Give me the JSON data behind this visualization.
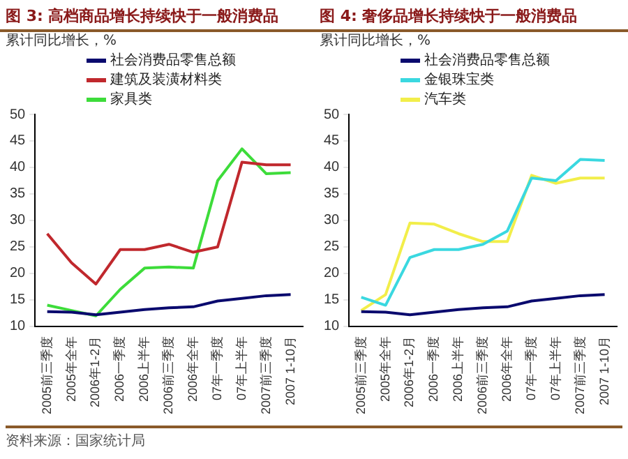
{
  "chart_data": [
    {
      "type": "line",
      "title": "图 3: 高档商品增长持续快于一般消费品",
      "ylabel": "累计同比增长，%",
      "categories": [
        "2005前三季度",
        "2005年全年",
        "2006年1-2月",
        "2006一季度",
        "2006上半年",
        "2006前三季度",
        "2006年全年",
        "07年一季度",
        "07年上半年",
        "2007前三季度",
        "2007 1-10月"
      ],
      "series": [
        {
          "name": "社会消费品零售总额",
          "color": "#0a0a6e",
          "values": [
            12.8,
            12.7,
            12.2,
            12.7,
            13.2,
            13.5,
            13.7,
            14.8,
            15.3,
            15.8,
            16
          ]
        },
        {
          "name": "建筑及装潢材料类",
          "color": "#c0282d",
          "values": [
            27.5,
            22,
            18,
            24.5,
            24.5,
            25.5,
            24,
            25,
            41,
            40.5,
            40.5
          ]
        },
        {
          "name": "家具类",
          "color": "#3ddc3a",
          "values": [
            14,
            13,
            12,
            17,
            21,
            21.2,
            21,
            37.5,
            43.5,
            38.8,
            39
          ]
        }
      ],
      "ylim": [
        10,
        50
      ],
      "yticks": [
        10,
        15,
        20,
        25,
        30,
        35,
        40,
        45,
        50
      ],
      "legend": "top",
      "marker": "none",
      "annotations": [
        "资料来源：国家统计局"
      ]
    },
    {
      "type": "line",
      "title": "图 4: 奢侈品增长持续快于一般消费品",
      "ylabel": "累计同比增长，%",
      "categories": [
        "2005前三季度",
        "2005年全年",
        "2006年1-2月",
        "2006一季度",
        "2006上半年",
        "2006前三季度",
        "2006年全年",
        "07年一季度",
        "07年上半年",
        "2007前三季度",
        "2007 1-10月"
      ],
      "series": [
        {
          "name": "社会消费品零售总额",
          "color": "#0a0a6e",
          "values": [
            12.8,
            12.7,
            12.2,
            12.7,
            13.2,
            13.5,
            13.7,
            14.8,
            15.3,
            15.8,
            16
          ]
        },
        {
          "name": "金银珠宝类",
          "color": "#3ad8e0",
          "values": [
            15.5,
            14,
            23,
            24.5,
            24.5,
            25.5,
            28,
            38,
            37.5,
            41.5,
            41.3
          ]
        },
        {
          "name": "汽车类",
          "color": "#f2ee4a",
          "values": [
            13,
            16,
            29.5,
            29.3,
            27.5,
            26,
            26,
            38.5,
            37,
            38,
            38
          ]
        }
      ],
      "ylim": [
        10,
        50
      ],
      "yticks": [
        10,
        15,
        20,
        25,
        30,
        35,
        40,
        45,
        50
      ],
      "legend": "top",
      "marker": "none"
    }
  ]
}
